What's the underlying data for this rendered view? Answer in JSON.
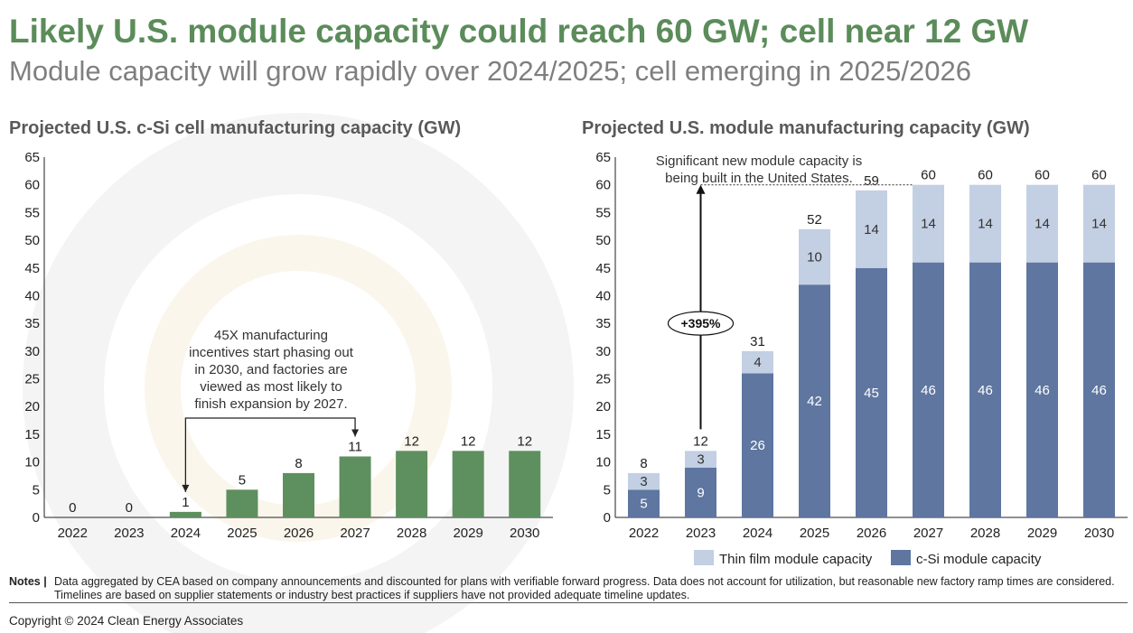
{
  "header": {
    "title": "Likely U.S. module capacity could reach 60 GW; cell near 12 GW",
    "subtitle": "Module capacity will grow rapidly over 2024/2025; cell emerging in 2025/2026"
  },
  "colors": {
    "title": "#5b8c5a",
    "cell_bar": "#5e8f5f",
    "csi_module": "#5e76a0",
    "thin_film": "#c3cfe3"
  },
  "chart_data": [
    {
      "type": "bar",
      "title": "Projected U.S. c-Si cell manufacturing capacity (GW)",
      "categories": [
        "2022",
        "2023",
        "2024",
        "2025",
        "2026",
        "2027",
        "2028",
        "2029",
        "2030"
      ],
      "values": [
        0,
        0,
        1,
        5,
        8,
        11,
        12,
        12,
        12
      ],
      "value_labels": [
        "0",
        "0",
        "1",
        "5",
        "8",
        "11",
        "12",
        "12",
        "12"
      ],
      "ylim": [
        0,
        65
      ],
      "yticks": [
        "0",
        "5",
        "10",
        "15",
        "20",
        "25",
        "30",
        "35",
        "40",
        "45",
        "50",
        "55",
        "60",
        "65"
      ],
      "annotation": [
        "45X manufacturing",
        "incentives start phasing out",
        "in 2030, and factories are",
        "viewed as most likely to",
        "finish expansion by 2027."
      ],
      "grid": false
    },
    {
      "type": "bar",
      "stacked": true,
      "title": "Projected U.S. module manufacturing capacity (GW)",
      "categories": [
        "2022",
        "2023",
        "2024",
        "2025",
        "2026",
        "2027",
        "2028",
        "2029",
        "2030"
      ],
      "series": [
        {
          "name": "c-Si module capacity",
          "values": [
            5,
            9,
            26,
            42,
            45,
            46,
            46,
            46,
            46
          ],
          "labels": [
            "5",
            "9",
            "26",
            "42",
            "45",
            "46",
            "46",
            "46",
            "46"
          ]
        },
        {
          "name": "Thin film module capacity",
          "values": [
            3,
            3,
            4,
            10,
            14,
            14,
            14,
            14,
            14
          ],
          "labels": [
            "3",
            "3",
            "4",
            "10",
            "14",
            "14",
            "14",
            "14",
            "14"
          ]
        }
      ],
      "totals": [
        8,
        12,
        31,
        52,
        59,
        60,
        60,
        60,
        60
      ],
      "total_labels": [
        "8",
        "12",
        "31",
        "52",
        "59",
        "60",
        "60",
        "60",
        "60"
      ],
      "legend_order": [
        "Thin film module capacity",
        "c-Si module capacity"
      ],
      "ylim": [
        0,
        65
      ],
      "yticks": [
        "0",
        "5",
        "10",
        "15",
        "20",
        "25",
        "30",
        "35",
        "40",
        "45",
        "50",
        "55",
        "60",
        "65"
      ],
      "annotation": [
        "Significant new module capacity is",
        "being built in the United States."
      ],
      "growth_label": "+395%",
      "legend": "bottom",
      "grid": false
    }
  ],
  "notes": {
    "label": "Notes |",
    "text": "Data aggregated by CEA based on company announcements and discounted for plans with verifiable forward progress. Data does not account for utilization, but reasonable new factory ramp times are considered. Timelines are based on supplier statements or industry best practices if suppliers have not provided adequate timeline updates."
  },
  "footer": {
    "copyright": "Copyright © 2024 Clean Energy Associates"
  }
}
